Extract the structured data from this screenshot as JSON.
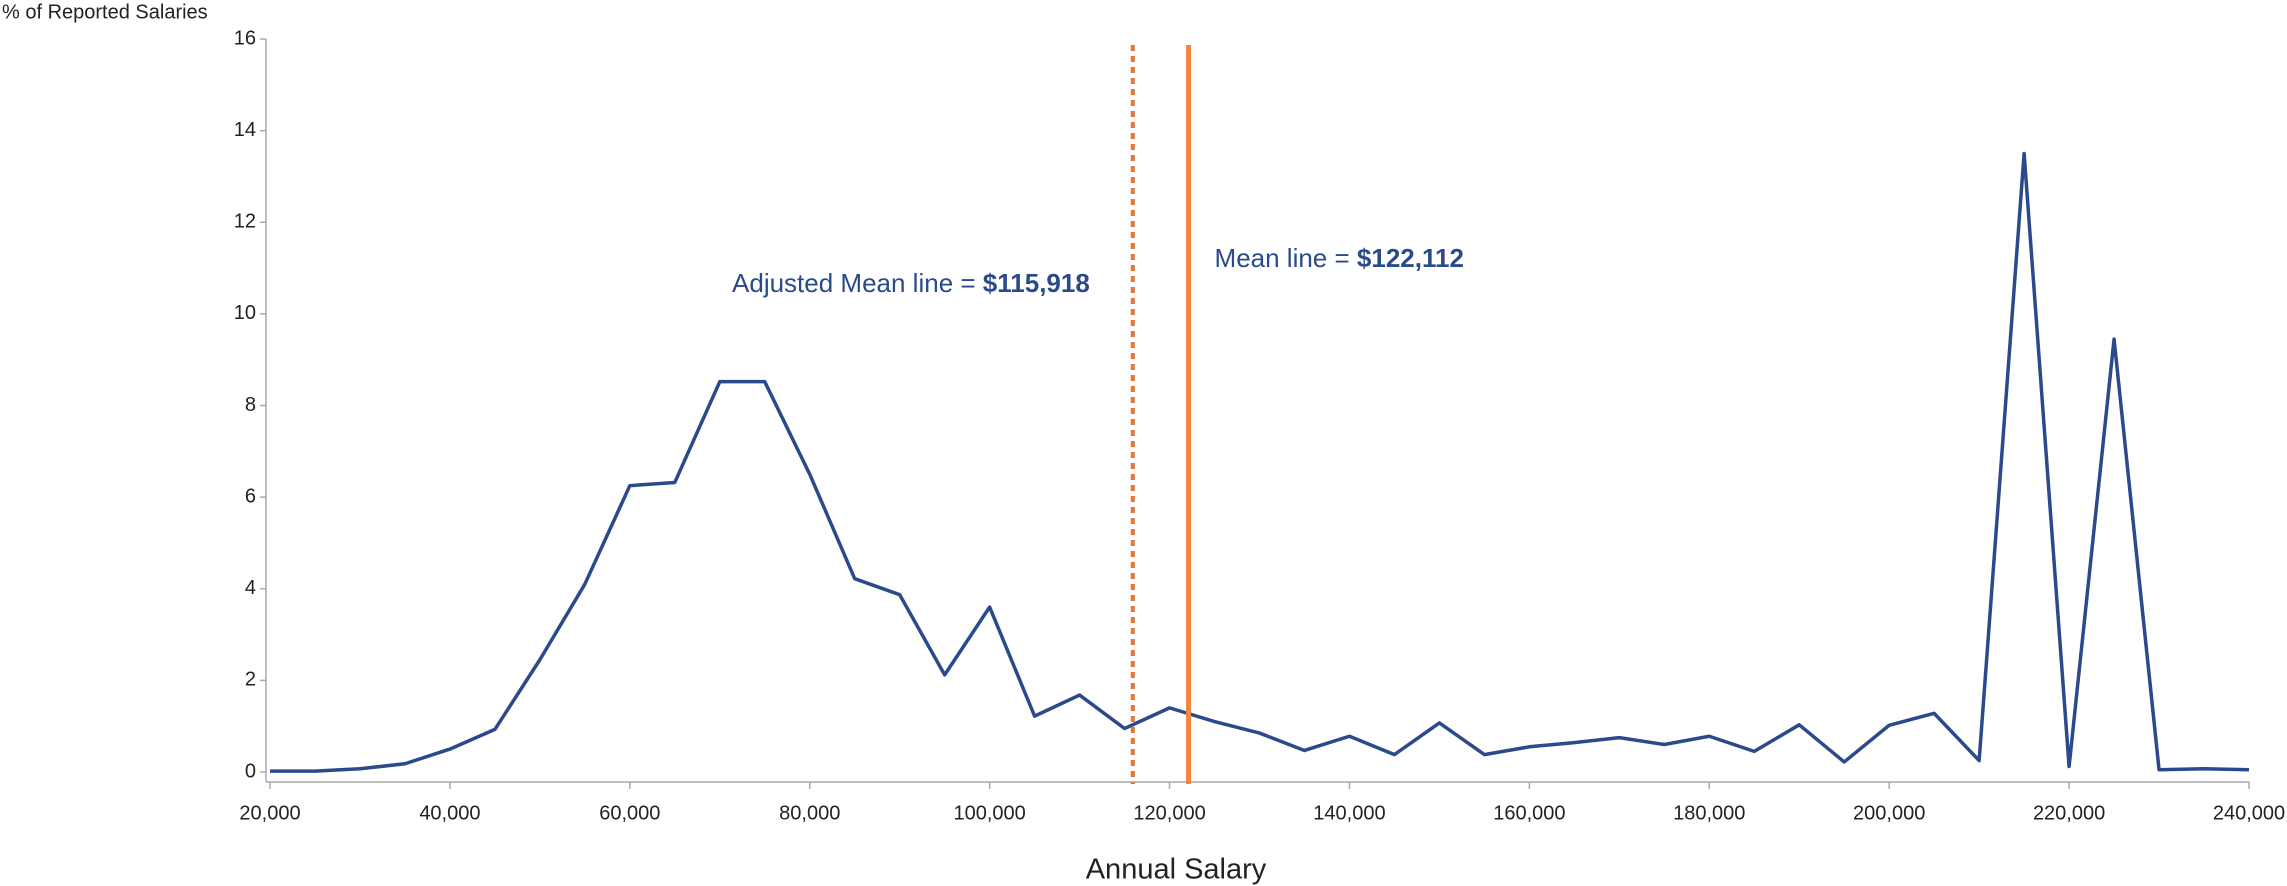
{
  "chart_data": {
    "type": "line",
    "ylabel": "% of Reported Salaries",
    "xlabel": "Annual Salary",
    "x": [
      20000,
      25000,
      30000,
      35000,
      40000,
      45000,
      50000,
      55000,
      60000,
      65000,
      70000,
      75000,
      80000,
      85000,
      90000,
      95000,
      100000,
      105000,
      110000,
      115000,
      120000,
      125000,
      130000,
      135000,
      140000,
      145000,
      150000,
      155000,
      160000,
      165000,
      170000,
      175000,
      180000,
      185000,
      190000,
      195000,
      200000,
      205000,
      210000,
      215000,
      220000,
      225000,
      230000,
      235000,
      240000
    ],
    "series": [
      {
        "color": "#2a4a8c",
        "values": [
          0.02,
          0.02,
          0.07,
          0.18,
          0.5,
          0.93,
          2.45,
          4.1,
          6.25,
          6.32,
          8.52,
          8.52,
          6.5,
          4.22,
          3.87,
          2.12,
          3.6,
          1.22,
          1.68,
          0.95,
          1.4,
          1.1,
          0.85,
          0.47,
          0.78,
          0.38,
          1.07,
          0.38,
          0.55,
          0.64,
          0.75,
          0.6,
          0.78,
          0.45,
          1.03,
          0.22,
          1.02,
          1.28,
          0.25,
          13.5,
          0.12,
          9.45,
          0.05,
          0.07,
          0.05
        ]
      }
    ],
    "reference_lines": [
      {
        "value": 115918,
        "text": "Adjusted Mean line = ",
        "value_label": "$115,918",
        "style": "dotted",
        "color": "#e0783a"
      },
      {
        "value": 122112,
        "text": "Mean line = ",
        "value_label": "$122,112",
        "style": "solid",
        "color": "#ee8640"
      }
    ],
    "xlim": [
      20000,
      240000
    ],
    "xticks": [
      {
        "value": 20000,
        "label": "20,000"
      },
      {
        "value": 40000,
        "label": "40,000"
      },
      {
        "value": 60000,
        "label": "60,000"
      },
      {
        "value": 80000,
        "label": "80,000"
      },
      {
        "value": 100000,
        "label": "100,000"
      },
      {
        "value": 120000,
        "label": "120,000"
      },
      {
        "value": 140000,
        "label": "140,000"
      },
      {
        "value": 160000,
        "label": "160,000"
      },
      {
        "value": 180000,
        "label": "180,000"
      },
      {
        "value": 200000,
        "label": "200,000"
      },
      {
        "value": 220000,
        "label": "220,000"
      },
      {
        "value": 240000,
        "label": "240,000"
      }
    ],
    "ylim": [
      0,
      16
    ],
    "yticks": [
      0,
      2,
      4,
      6,
      8,
      10,
      12,
      14,
      16
    ]
  }
}
